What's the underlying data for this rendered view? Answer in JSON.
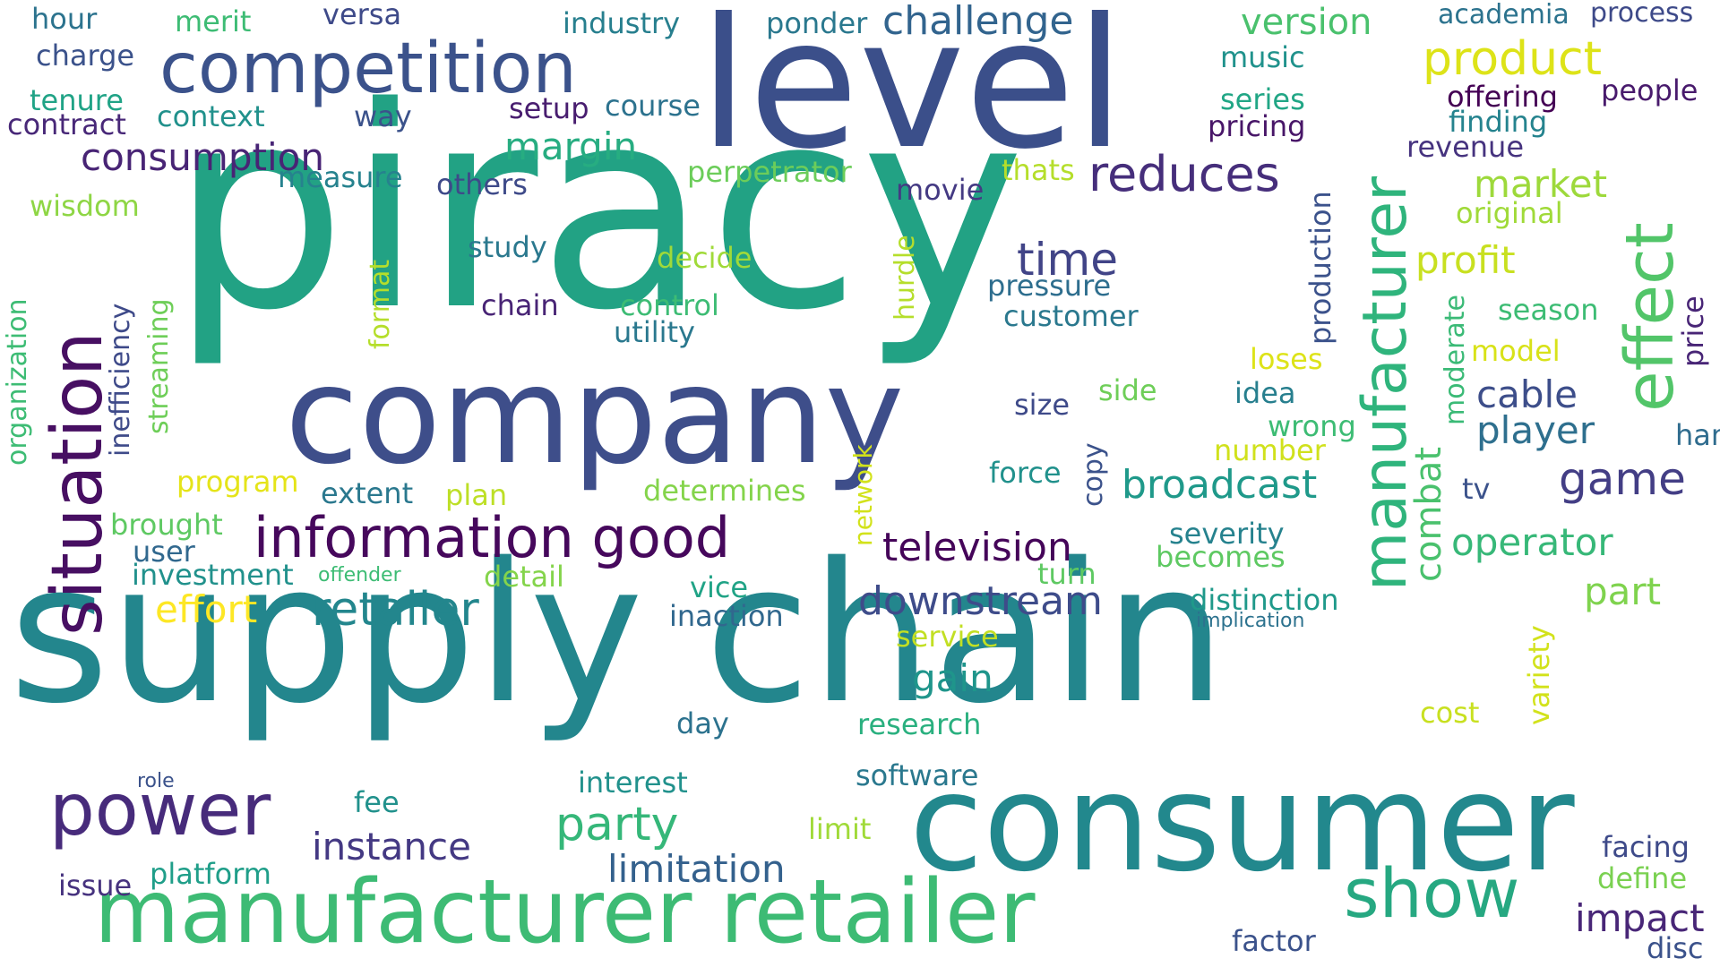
{
  "words": [
    {
      "text": "piracy",
      "color": "#22a284"
    },
    {
      "text": "supply chain",
      "color": "#23868d"
    },
    {
      "text": "level",
      "color": "#3b4f8a"
    },
    {
      "text": "company",
      "color": "#3e4e8a"
    },
    {
      "text": "consumer",
      "color": "#22888d"
    },
    {
      "text": "manufacturer retailer",
      "color": "#3dbb74"
    },
    {
      "text": "competition",
      "color": "#3b528b"
    },
    {
      "text": "situation",
      "color": "#470f62"
    },
    {
      "text": "power",
      "color": "#472b7b"
    },
    {
      "text": "information good",
      "color": "#46085c"
    },
    {
      "text": "manufacturer",
      "color": "#2fb47c"
    },
    {
      "text": "effect",
      "color": "#52c569"
    },
    {
      "text": "show",
      "color": "#26a881"
    },
    {
      "text": "product",
      "color": "#dde318"
    },
    {
      "text": "reduces",
      "color": "#462e7b"
    },
    {
      "text": "challenge",
      "color": "#32648e"
    },
    {
      "text": "retailer",
      "color": "#23868d"
    },
    {
      "text": "time",
      "color": "#414487"
    },
    {
      "text": "television",
      "color": "#450559"
    },
    {
      "text": "downstream",
      "color": "#3e4c8a"
    },
    {
      "text": "broadcast",
      "color": "#1f998a"
    },
    {
      "text": "game",
      "color": "#433e85"
    },
    {
      "text": "party",
      "color": "#35b779"
    },
    {
      "text": "margin",
      "color": "#27ad81"
    },
    {
      "text": "consumption",
      "color": "#482475"
    },
    {
      "text": "market",
      "color": "#9dd93b"
    },
    {
      "text": "profit",
      "color": "#c8e020"
    },
    {
      "text": "cable",
      "color": "#3d4e8a"
    },
    {
      "text": "player",
      "color": "#2e6f8e"
    },
    {
      "text": "operator",
      "color": "#37b878"
    },
    {
      "text": "part",
      "color": "#7fd34e"
    },
    {
      "text": "impact",
      "color": "#482677"
    },
    {
      "text": "effort",
      "color": "#fde725"
    },
    {
      "text": "instance",
      "color": "#443983"
    },
    {
      "text": "limitation",
      "color": "#34618d"
    },
    {
      "text": "gain",
      "color": "#1f958b"
    },
    {
      "text": "version",
      "color": "#4ac16d"
    },
    {
      "text": "combat",
      "color": "#4ac16d"
    },
    {
      "text": "production",
      "color": "#3b528b"
    },
    {
      "text": "industry",
      "color": "#277f8e"
    },
    {
      "text": "ponder",
      "color": "#2a788e"
    },
    {
      "text": "hour",
      "color": "#2c738e"
    },
    {
      "text": "merit",
      "color": "#3dbc74"
    },
    {
      "text": "versa",
      "color": "#3e4a89"
    },
    {
      "text": "charge",
      "color": "#3b528b"
    },
    {
      "text": "tenure",
      "color": "#20a386"
    },
    {
      "text": "context",
      "color": "#21918c"
    },
    {
      "text": "contract",
      "color": "#482878"
    },
    {
      "text": "way",
      "color": "#3b528b"
    },
    {
      "text": "setup",
      "color": "#481d6f"
    },
    {
      "text": "course",
      "color": "#2c728e"
    },
    {
      "text": "measure",
      "color": "#26828e"
    },
    {
      "text": "others",
      "color": "#3e4a89"
    },
    {
      "text": "perpetrator",
      "color": "#6ccd5a"
    },
    {
      "text": "thats",
      "color": "#b5de2b"
    },
    {
      "text": "movie",
      "color": "#443a83"
    },
    {
      "text": "wisdom",
      "color": "#8ed645"
    },
    {
      "text": "academia",
      "color": "#2c738e"
    },
    {
      "text": "process",
      "color": "#3e4a89"
    },
    {
      "text": "music",
      "color": "#20928c"
    },
    {
      "text": "series",
      "color": "#21a685"
    },
    {
      "text": "pricing",
      "color": "#481668"
    },
    {
      "text": "offering",
      "color": "#440154"
    },
    {
      "text": "people",
      "color": "#481a6c"
    },
    {
      "text": "finding",
      "color": "#25838e"
    },
    {
      "text": "revenue",
      "color": "#46337f"
    },
    {
      "text": "original",
      "color": "#a0da39"
    },
    {
      "text": "season",
      "color": "#3dbc74"
    },
    {
      "text": "model",
      "color": "#d8e219"
    },
    {
      "text": "price",
      "color": "#482576"
    },
    {
      "text": "loses",
      "color": "#dde318"
    },
    {
      "text": "idea",
      "color": "#277f8e"
    },
    {
      "text": "wrong",
      "color": "#3dbc74"
    },
    {
      "text": "hand",
      "color": "#2f6c8e"
    },
    {
      "text": "number",
      "color": "#d0e11c"
    },
    {
      "text": "moderate",
      "color": "#3aba76"
    },
    {
      "text": "severity",
      "color": "#26828e"
    },
    {
      "text": "becomes",
      "color": "#5ec962"
    },
    {
      "text": "tv",
      "color": "#3b528b"
    },
    {
      "text": "distinction",
      "color": "#1f998a"
    },
    {
      "text": "implication",
      "color": "#2c728e"
    },
    {
      "text": "variety",
      "color": "#d2e21b"
    },
    {
      "text": "cost",
      "color": "#c8e020"
    },
    {
      "text": "facing",
      "color": "#3e4a89"
    },
    {
      "text": "define",
      "color": "#7ad151"
    },
    {
      "text": "factor",
      "color": "#3b528b"
    },
    {
      "text": "disc",
      "color": "#3b528b"
    },
    {
      "text": "study",
      "color": "#2a788e"
    },
    {
      "text": "decide",
      "color": "#a0da39"
    },
    {
      "text": "chain",
      "color": "#482475"
    },
    {
      "text": "control",
      "color": "#3dbc74"
    },
    {
      "text": "utility",
      "color": "#2a788e"
    },
    {
      "text": "format",
      "color": "#b5de2b"
    },
    {
      "text": "hurdle",
      "color": "#b5de2b"
    },
    {
      "text": "pressure",
      "color": "#2e6e8e"
    },
    {
      "text": "customer",
      "color": "#2a788e"
    },
    {
      "text": "size",
      "color": "#3e4a89"
    },
    {
      "text": "side",
      "color": "#6ece58"
    },
    {
      "text": "copy",
      "color": "#3b528b"
    },
    {
      "text": "force",
      "color": "#21918c"
    },
    {
      "text": "network",
      "color": "#d2e21b"
    },
    {
      "text": "organization",
      "color": "#3dbc74"
    },
    {
      "text": "inefficiency",
      "color": "#3e4a89"
    },
    {
      "text": "streaming",
      "color": "#6ece58"
    },
    {
      "text": "program",
      "color": "#e5e419"
    },
    {
      "text": "extent",
      "color": "#2a788e"
    },
    {
      "text": "plan",
      "color": "#bddf26"
    },
    {
      "text": "determines",
      "color": "#84d44b"
    },
    {
      "text": "brought",
      "color": "#5ec962"
    },
    {
      "text": "user",
      "color": "#31688e"
    },
    {
      "text": "investment",
      "color": "#21918c"
    },
    {
      "text": "offender",
      "color": "#3dbc74"
    },
    {
      "text": "detail",
      "color": "#84d44b"
    },
    {
      "text": "vice",
      "color": "#20a386"
    },
    {
      "text": "turn",
      "color": "#5ec962"
    },
    {
      "text": "inaction",
      "color": "#31688e"
    },
    {
      "text": "service",
      "color": "#c2df23"
    },
    {
      "text": "day",
      "color": "#2c728e"
    },
    {
      "text": "research",
      "color": "#2ab07f"
    },
    {
      "text": "role",
      "color": "#3b528b"
    },
    {
      "text": "fee",
      "color": "#21918c"
    },
    {
      "text": "interest",
      "color": "#21918c"
    },
    {
      "text": "software",
      "color": "#2a788e"
    },
    {
      "text": "limit",
      "color": "#a0da39"
    },
    {
      "text": "issue",
      "color": "#46327e"
    },
    {
      "text": "platform",
      "color": "#1f9e89"
    }
  ]
}
